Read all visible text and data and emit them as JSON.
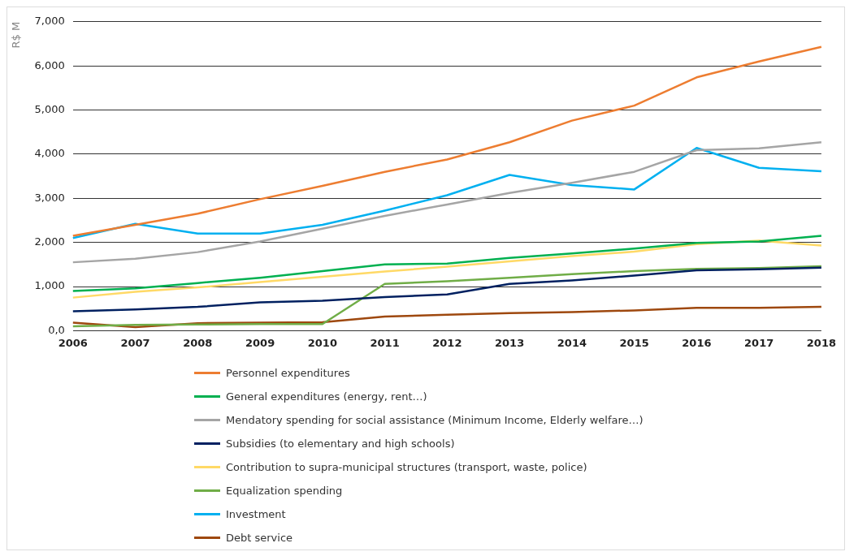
{
  "chart_data": {
    "type": "line",
    "ylabel": "R$ M",
    "categories": [
      "2006",
      "2007",
      "2008",
      "2009",
      "2010",
      "2011",
      "2012",
      "2013",
      "2014",
      "2015",
      "2016",
      "2017",
      "2018"
    ],
    "ylim": [
      0,
      7000
    ],
    "yticks": [
      {
        "value": 0,
        "label": "0,0"
      },
      {
        "value": 1000,
        "label": "1,000"
      },
      {
        "value": 2000,
        "label": "2,000"
      },
      {
        "value": 3000,
        "label": "3,000"
      },
      {
        "value": 4000,
        "label": "4,000"
      },
      {
        "value": 5000,
        "label": "5,000"
      },
      {
        "value": 6000,
        "label": "6,000"
      },
      {
        "value": 7000,
        "label": "7,000"
      }
    ],
    "grid": "y",
    "legend": "bottom",
    "marker": "none",
    "line_style": "solid",
    "series": [
      {
        "name": "Personnel expenditures",
        "color": "#ed7d31",
        "values": [
          2150,
          2400,
          2650,
          2980,
          3280,
          3600,
          3880,
          4270,
          4760,
          5100,
          5740,
          6100,
          6430
        ]
      },
      {
        "name": "General expenditures (energy, rent…)",
        "color": "#00b050",
        "values": [
          900,
          960,
          1080,
          1200,
          1350,
          1500,
          1520,
          1650,
          1750,
          1860,
          1990,
          2020,
          2150
        ]
      },
      {
        "name": "Mendatory spending for social assistance (Minimum Income, Elderly welfare…)",
        "color": "#a5a5a5",
        "values": [
          1550,
          1630,
          1780,
          2020,
          2310,
          2600,
          2860,
          3120,
          3350,
          3600,
          4090,
          4130,
          4270
        ]
      },
      {
        "name": "Subsidies (to elementary and high schools)",
        "color": "#002060",
        "values": [
          440,
          480,
          540,
          640,
          680,
          760,
          820,
          1060,
          1140,
          1250,
          1370,
          1390,
          1430
        ]
      },
      {
        "name": "Contribution to supra-municipal structures (transport, waste, police)",
        "color": "#ffd966",
        "values": [
          750,
          880,
          980,
          1100,
          1220,
          1340,
          1450,
          1570,
          1690,
          1790,
          1960,
          2040,
          1930
        ]
      },
      {
        "name": "Equalization spending",
        "color": "#70ad47",
        "values": [
          100,
          130,
          140,
          150,
          150,
          1060,
          1120,
          1200,
          1280,
          1350,
          1400,
          1420,
          1460
        ]
      },
      {
        "name": "Investment",
        "color": "#00b0f0",
        "values": [
          2100,
          2420,
          2200,
          2200,
          2400,
          2720,
          3070,
          3530,
          3300,
          3200,
          4140,
          3690,
          3610
        ]
      },
      {
        "name": "Debt service",
        "color": "#9e480e",
        "values": [
          180,
          80,
          170,
          180,
          190,
          320,
          360,
          400,
          420,
          460,
          520,
          520,
          540
        ]
      }
    ]
  }
}
